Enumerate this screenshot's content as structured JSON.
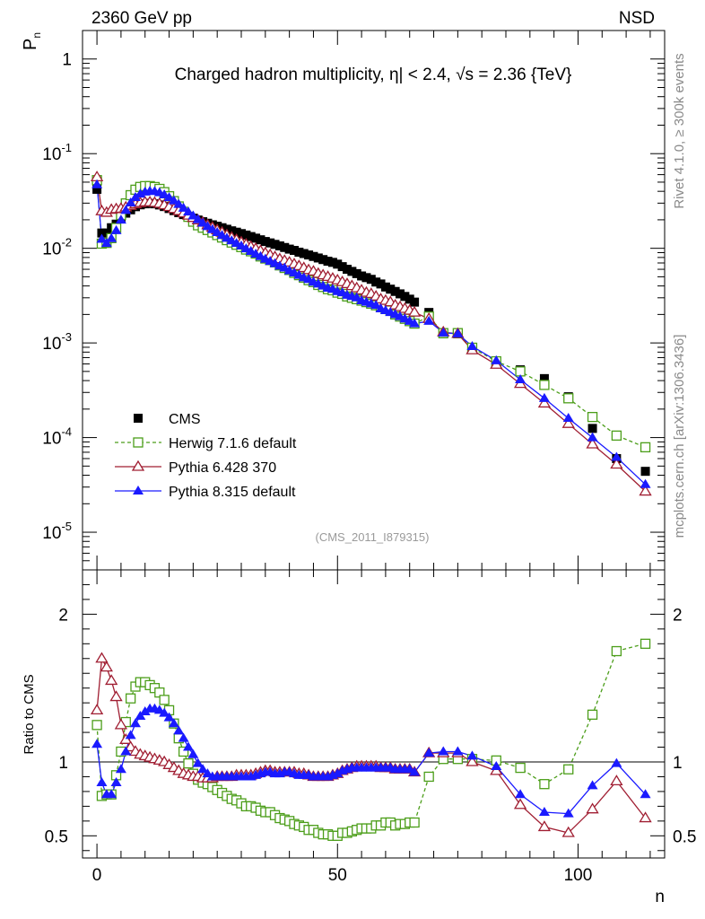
{
  "header": {
    "left": "2360 GeV pp",
    "right": "NSD"
  },
  "side_labels": {
    "rivet": "Rivet 4.1.0, ≥ 300k events",
    "mcplots": "mcplots.cern.ch [arXiv:1306.3436]"
  },
  "chart_data": [
    {
      "type": "line",
      "title": "Charged hadron multiplicity, η| < 2.4, √s = 2.36 {TeV}",
      "ylabel": "P_n",
      "xlabel": "n",
      "yscale": "log",
      "ylim": [
        4e-06,
        2
      ],
      "xlim": [
        -3,
        118
      ],
      "y_ticks": [
        {
          "value": 1,
          "label": "1"
        },
        {
          "value": 0.1,
          "label": "10^-1"
        },
        {
          "value": 0.01,
          "label": "10^-2"
        },
        {
          "value": 0.001,
          "label": "10^-3"
        },
        {
          "value": 0.0001,
          "label": "10^-4"
        },
        {
          "value": 1e-05,
          "label": "10^-5"
        }
      ],
      "annotation": "(CMS_2011_I879315)",
      "legend_position": "lower-left",
      "x": [
        0,
        1,
        2,
        3,
        4,
        5,
        6,
        7,
        8,
        9,
        10,
        11,
        12,
        13,
        14,
        15,
        16,
        17,
        18,
        19,
        20,
        21,
        22,
        23,
        24,
        25,
        26,
        27,
        28,
        29,
        30,
        31,
        32,
        33,
        34,
        35,
        36,
        37,
        38,
        39,
        40,
        41,
        42,
        43,
        44,
        45,
        46,
        47,
        48,
        49,
        50,
        51,
        52,
        53,
        54,
        55,
        56,
        57,
        58,
        59,
        60,
        61,
        62,
        63,
        64,
        65,
        66,
        69,
        72,
        75,
        78,
        83,
        88,
        93,
        98,
        103,
        108,
        114
      ],
      "series": [
        {
          "name": "CMS",
          "color": "#000000",
          "marker": "square-filled",
          "line": "none",
          "values": [
            0.042,
            0.0145,
            0.0145,
            0.0165,
            0.018,
            0.021,
            0.0235,
            0.0255,
            0.0275,
            0.0288,
            0.0295,
            0.0298,
            0.0295,
            0.0287,
            0.0276,
            0.0263,
            0.025,
            0.0238,
            0.0227,
            0.0218,
            0.0208,
            0.0199,
            0.0191,
            0.0184,
            0.0177,
            0.0171,
            0.0165,
            0.0159,
            0.0153,
            0.0148,
            0.0143,
            0.0138,
            0.0133,
            0.0128,
            0.0123,
            0.0118,
            0.0114,
            0.011,
            0.0106,
            0.0102,
            0.0098,
            0.0095,
            0.0091,
            0.0088,
            0.0085,
            0.0082,
            0.0079,
            0.0076,
            0.0073,
            0.0071,
            0.0068,
            0.0064,
            0.006,
            0.0057,
            0.0054,
            0.0051,
            0.0049,
            0.0047,
            0.0044,
            0.0042,
            0.0039,
            0.0037,
            0.0035,
            0.0033,
            0.0031,
            0.0029,
            0.0027,
            0.0021,
            0.00125,
            0.00125,
            0.00087,
            0.00063,
            0.00052,
            0.00042,
            0.00027,
            0.000125,
            6e-05,
            4.4e-05
          ]
        },
        {
          "name": "Herwig 7.1.6 default",
          "color": "#4c9e1a",
          "marker": "square-open",
          "line": "dashed",
          "values": [
            0.0525,
            0.0112,
            0.0114,
            0.0128,
            0.0164,
            0.0225,
            0.0298,
            0.0364,
            0.0416,
            0.0445,
            0.0454,
            0.0454,
            0.0444,
            0.0424,
            0.0392,
            0.0355,
            0.0315,
            0.0277,
            0.0243,
            0.0215,
            0.0191,
            0.0175,
            0.0165,
            0.0156,
            0.0147,
            0.0138,
            0.013,
            0.0122,
            0.0115,
            0.0109,
            0.0103,
            0.0097,
            0.0093,
            0.0088,
            0.0082,
            0.0078,
            0.0075,
            0.0071,
            0.0066,
            0.0062,
            0.0059,
            0.0055,
            0.0052,
            0.0049,
            0.0046,
            0.0044,
            0.0041,
            0.0039,
            0.0037,
            0.0036,
            0.0034,
            0.0033,
            0.0031,
            0.003,
            0.0029,
            0.0028,
            0.0027,
            0.0026,
            0.0025,
            0.0024,
            0.0023,
            0.0022,
            0.002,
            0.0019,
            0.0018,
            0.0017,
            0.0016,
            0.0019,
            0.00127,
            0.00127,
            0.00089,
            0.00064,
            0.0005,
            0.00036,
            0.00026,
            0.000165,
            0.000105,
            7.9e-05
          ]
        },
        {
          "name": "Pythia 6.428 370",
          "color": "#a01e32",
          "marker": "triangle-open",
          "line": "solid",
          "values": [
            0.0565,
            0.0247,
            0.0238,
            0.0256,
            0.026,
            0.0263,
            0.0271,
            0.0282,
            0.0293,
            0.0302,
            0.0307,
            0.0307,
            0.0303,
            0.0296,
            0.0286,
            0.0274,
            0.0261,
            0.0248,
            0.0235,
            0.0222,
            0.021,
            0.0198,
            0.0187,
            0.0176,
            0.0166,
            0.0156,
            0.0147,
            0.0138,
            0.013,
            0.0123,
            0.0116,
            0.011,
            0.0104,
            0.0099,
            0.0094,
            0.0089,
            0.0085,
            0.0081,
            0.0077,
            0.0074,
            0.0071,
            0.0068,
            0.0065,
            0.0062,
            0.0059,
            0.0057,
            0.0054,
            0.0052,
            0.005,
            0.0048,
            0.0046,
            0.0044,
            0.0042,
            0.004,
            0.0038,
            0.0036,
            0.0034,
            0.0033,
            0.0031,
            0.0029,
            0.0028,
            0.0027,
            0.0025,
            0.0024,
            0.0023,
            0.0022,
            0.0021,
            0.0018,
            0.0013,
            0.00125,
            0.00084,
            0.00059,
            0.00037,
            0.00023,
            0.00014,
            8.5e-05,
            5.2e-05,
            2.7e-05
          ]
        },
        {
          "name": "Pythia 8.315 default",
          "color": "#1a1aff",
          "marker": "triangle-filled",
          "line": "solid",
          "values": [
            0.047,
            0.0125,
            0.0113,
            0.0127,
            0.0154,
            0.0199,
            0.0252,
            0.0302,
            0.0345,
            0.0375,
            0.0394,
            0.0402,
            0.0399,
            0.0387,
            0.0368,
            0.0344,
            0.0318,
            0.0292,
            0.0266,
            0.0242,
            0.022,
            0.0201,
            0.0185,
            0.017,
            0.0158,
            0.0147,
            0.0137,
            0.0128,
            0.012,
            0.0113,
            0.0106,
            0.0099,
            0.0093,
            0.0087,
            0.0082,
            0.0077,
            0.0073,
            0.0069,
            0.0065,
            0.0062,
            0.0058,
            0.0055,
            0.0052,
            0.0049,
            0.0047,
            0.0044,
            0.0042,
            0.004,
            0.0038,
            0.0037,
            0.0035,
            0.0034,
            0.0032,
            0.0031,
            0.003,
            0.0028,
            0.0027,
            0.0026,
            0.0025,
            0.0023,
            0.0022,
            0.0021,
            0.002,
            0.0019,
            0.0018,
            0.0017,
            0.0016,
            0.0017,
            0.00128,
            0.00125,
            0.00092,
            0.00065,
            0.00041,
            0.00026,
            0.00016,
            0.0001,
            6.2e-05,
            3.2e-05
          ]
        }
      ]
    },
    {
      "type": "line",
      "ylabel": "Ratio to CMS",
      "xlabel": "n",
      "ylim": [
        0.35,
        2.3
      ],
      "xlim": [
        -3,
        118
      ],
      "reference_line": 1,
      "y_ticks": [
        0.5,
        1,
        2
      ],
      "x_ticks": [
        0,
        50,
        100
      ],
      "x": [
        0,
        1,
        2,
        3,
        4,
        5,
        6,
        7,
        8,
        9,
        10,
        11,
        12,
        13,
        14,
        15,
        16,
        17,
        18,
        19,
        20,
        21,
        22,
        23,
        24,
        25,
        26,
        27,
        28,
        29,
        30,
        31,
        32,
        33,
        34,
        35,
        36,
        37,
        38,
        39,
        40,
        41,
        42,
        43,
        44,
        45,
        46,
        47,
        48,
        49,
        50,
        51,
        52,
        53,
        54,
        55,
        56,
        57,
        58,
        59,
        60,
        61,
        62,
        63,
        64,
        65,
        66,
        69,
        72,
        75,
        78,
        83,
        88,
        93,
        98,
        103,
        108,
        114
      ],
      "series": [
        {
          "name": "Herwig 7.1.6 default",
          "color": "#4c9e1a",
          "marker": "square-open",
          "line": "dashed",
          "values": [
            1.25,
            0.77,
            0.78,
            0.78,
            0.91,
            1.07,
            1.27,
            1.43,
            1.51,
            1.54,
            1.54,
            1.52,
            1.5,
            1.47,
            1.42,
            1.35,
            1.26,
            1.16,
            1.07,
            0.99,
            0.92,
            0.88,
            0.86,
            0.85,
            0.83,
            0.81,
            0.79,
            0.77,
            0.75,
            0.74,
            0.72,
            0.7,
            0.7,
            0.69,
            0.67,
            0.66,
            0.66,
            0.64,
            0.62,
            0.61,
            0.6,
            0.58,
            0.57,
            0.56,
            0.54,
            0.54,
            0.52,
            0.51,
            0.51,
            0.5,
            0.5,
            0.52,
            0.52,
            0.53,
            0.54,
            0.55,
            0.55,
            0.55,
            0.57,
            0.57,
            0.59,
            0.59,
            0.57,
            0.58,
            0.58,
            0.59,
            0.59,
            0.9,
            1.02,
            1.02,
            1.02,
            1.01,
            0.96,
            0.85,
            0.95,
            1.32,
            1.75,
            1.8
          ]
        },
        {
          "name": "Pythia 6.428 370",
          "color": "#a01e32",
          "marker": "triangle-open",
          "line": "solid",
          "values": [
            1.35,
            1.7,
            1.64,
            1.55,
            1.44,
            1.25,
            1.15,
            1.1,
            1.07,
            1.05,
            1.04,
            1.03,
            1.02,
            1.01,
            1.0,
            0.98,
            0.96,
            0.94,
            0.92,
            0.91,
            0.9,
            0.9,
            0.89,
            0.89,
            0.89,
            0.9,
            0.9,
            0.9,
            0.9,
            0.91,
            0.91,
            0.91,
            0.91,
            0.92,
            0.93,
            0.94,
            0.94,
            0.93,
            0.93,
            0.93,
            0.93,
            0.93,
            0.92,
            0.92,
            0.91,
            0.9,
            0.9,
            0.9,
            0.9,
            0.91,
            0.92,
            0.94,
            0.95,
            0.96,
            0.97,
            0.97,
            0.97,
            0.97,
            0.97,
            0.96,
            0.96,
            0.96,
            0.95,
            0.95,
            0.95,
            0.95,
            0.93,
            1.06,
            1.06,
            1.06,
            1.0,
            0.94,
            0.71,
            0.56,
            0.52,
            0.68,
            0.87,
            0.62
          ]
        },
        {
          "name": "Pythia 8.315 default",
          "color": "#1a1aff",
          "marker": "triangle-filled",
          "line": "solid",
          "values": [
            1.12,
            0.86,
            0.78,
            0.78,
            0.86,
            0.95,
            1.07,
            1.18,
            1.26,
            1.31,
            1.34,
            1.36,
            1.36,
            1.35,
            1.33,
            1.3,
            1.26,
            1.21,
            1.16,
            1.1,
            1.05,
            0.99,
            0.95,
            0.92,
            0.9,
            0.9,
            0.9,
            0.9,
            0.9,
            0.9,
            0.9,
            0.9,
            0.9,
            0.91,
            0.92,
            0.93,
            0.93,
            0.92,
            0.92,
            0.93,
            0.93,
            0.92,
            0.91,
            0.91,
            0.91,
            0.9,
            0.9,
            0.9,
            0.9,
            0.91,
            0.92,
            0.94,
            0.95,
            0.96,
            0.96,
            0.96,
            0.96,
            0.96,
            0.96,
            0.96,
            0.96,
            0.96,
            0.95,
            0.95,
            0.95,
            0.95,
            0.93,
            1.06,
            1.07,
            1.07,
            1.04,
            0.97,
            0.78,
            0.66,
            0.65,
            0.84,
            0.99,
            0.78
          ]
        }
      ]
    }
  ]
}
